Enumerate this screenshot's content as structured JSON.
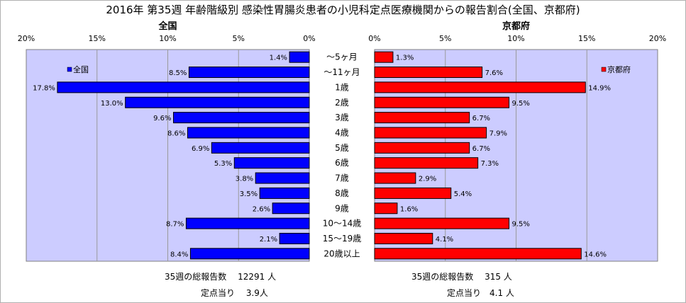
{
  "chart_data": {
    "type": "bar",
    "title": "2016年 第35週 年齢階級別 感染性胃腸炎患者の小児科定点医療機関からの報告割合(全国、京都府)",
    "categories": [
      "～5ヶ月",
      "～11ヶ月",
      "1歳",
      "2歳",
      "3歳",
      "4歳",
      "5歳",
      "6歳",
      "7歳",
      "8歳",
      "9歳",
      "10～14歳",
      "15～19歳",
      "20歳以上"
    ],
    "series": [
      {
        "name": "全国",
        "panel_title": "全国",
        "color": "#0000ff",
        "values": [
          1.4,
          8.5,
          17.8,
          13.0,
          9.6,
          8.6,
          6.9,
          5.3,
          3.8,
          3.5,
          2.6,
          8.7,
          2.1,
          8.4
        ],
        "labels": [
          "1.4%",
          "8.5%",
          "17.8%",
          "13.0%",
          "9.6%",
          "8.6%",
          "6.9%",
          "5.3%",
          "3.8%",
          "3.5%",
          "2.6%",
          "8.7%",
          "2.1%",
          "8.4%"
        ],
        "xlim": [
          0,
          20
        ],
        "ticks": [
          "20%",
          "15%",
          "10%",
          "5%",
          "0%"
        ]
      },
      {
        "name": "京都府",
        "panel_title": "京都府",
        "color": "#ff0000",
        "values": [
          1.3,
          7.6,
          14.9,
          9.5,
          6.7,
          7.9,
          6.7,
          7.3,
          2.9,
          5.4,
          1.6,
          9.5,
          4.1,
          14.6
        ],
        "labels": [
          "1.3%",
          "7.6%",
          "14.9%",
          "9.5%",
          "6.7%",
          "7.9%",
          "6.7%",
          "7.3%",
          "2.9%",
          "5.4%",
          "1.6%",
          "9.5%",
          "4.1%",
          "14.6%"
        ],
        "xlim": [
          0,
          20
        ],
        "ticks": [
          "0%",
          "5%",
          "10%",
          "15%",
          "20%"
        ]
      }
    ],
    "grid": true,
    "legend": "top-inside"
  },
  "footer": {
    "national_total": "35週の総報告数　 12291 人",
    "national_per_site": "定点当り　 3.9人",
    "kyoto_total": "35週の総報告数　 315 人",
    "kyoto_per_site": "定点当り　4.1 人"
  }
}
